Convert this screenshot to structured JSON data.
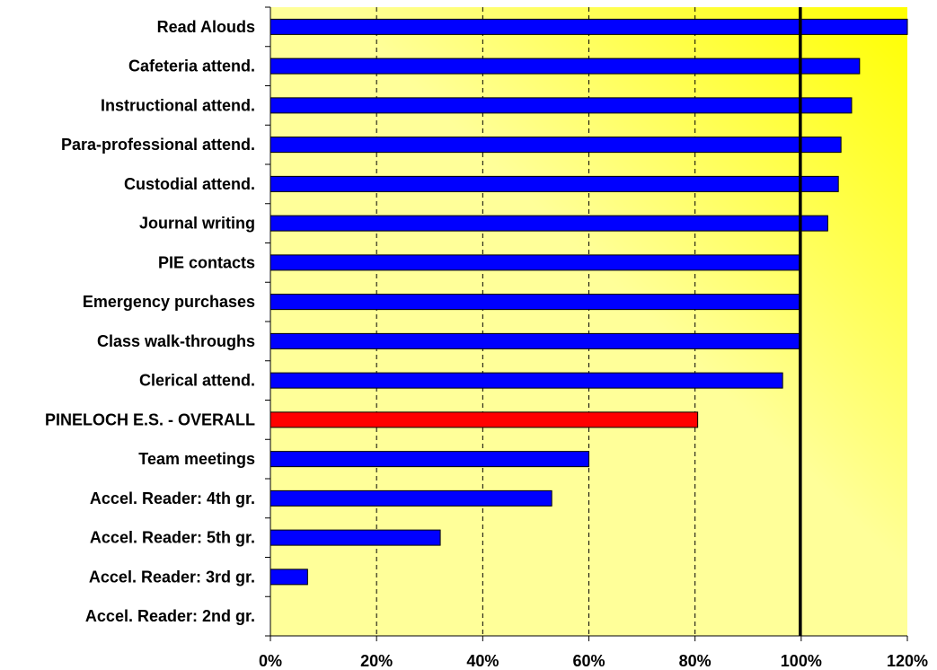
{
  "chart_data": {
    "type": "bar",
    "orientation": "horizontal",
    "title": "",
    "xlabel": "",
    "ylabel": "",
    "xlim": [
      0,
      1.2
    ],
    "x_ticks": [
      0,
      0.2,
      0.4,
      0.6,
      0.8,
      1.0,
      1.2
    ],
    "x_tick_labels": [
      "0%",
      "20%",
      "40%",
      "60%",
      "80%",
      "100%",
      "120%"
    ],
    "grid": "vertical dashed",
    "reference_line": 1.0,
    "categories": [
      "Read Alouds",
      "Cafeteria attend.",
      "Instructional attend.",
      "Para-professional attend.",
      "Custodial attend.",
      "Journal writing",
      "PIE contacts",
      "Emergency purchases",
      "Class walk-throughs",
      "Clerical attend.",
      "PINELOCH E.S. - OVERALL",
      "Team meetings",
      "Accel. Reader: 4th gr.",
      "Accel. Reader: 5th gr.",
      "Accel. Reader: 3rd gr.",
      "Accel. Reader: 2nd gr."
    ],
    "values": [
      1.2,
      1.11,
      1.095,
      1.075,
      1.07,
      1.05,
      1.0,
      1.0,
      1.0,
      0.965,
      0.805,
      0.6,
      0.53,
      0.32,
      0.07,
      0.0
    ],
    "highlight_index": 10,
    "colors": {
      "bar": "#0000ff",
      "highlight_bar": "#ff0000",
      "bar_outline": "#000000",
      "plot_bg_light": "#ffff99",
      "plot_bg_bright": "#ffff00",
      "grid": "#000000",
      "reference_line": "#000000"
    }
  }
}
